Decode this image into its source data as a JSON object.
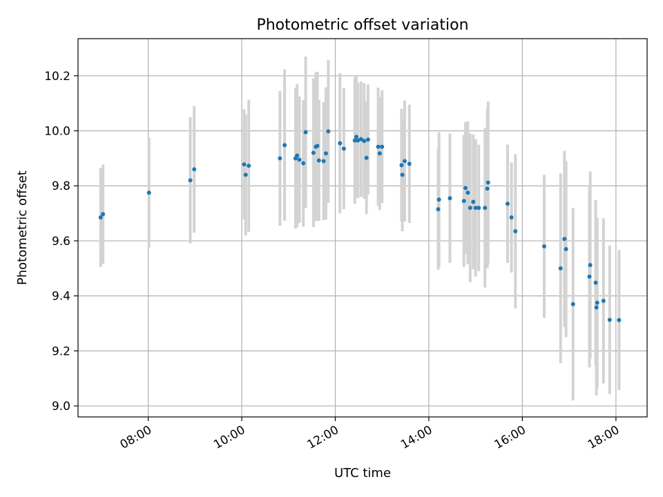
{
  "chart_data": {
    "type": "scatter",
    "title": "Photometric offset variation",
    "xlabel": "UTC time",
    "ylabel": "Photometric offset",
    "xlim": [
      "06:30",
      "18:40"
    ],
    "ylim": [
      8.96,
      10.335
    ],
    "xticks": [
      "08:00",
      "10:00",
      "12:00",
      "14:00",
      "16:00",
      "18:00"
    ],
    "yticks": [
      "9.0",
      "9.2",
      "9.4",
      "9.6",
      "9.8",
      "10.0",
      "10.2"
    ],
    "grid": true,
    "colors": {
      "point": "#1f77b4",
      "errorbar": "#d3d3d3",
      "grid": "#b0b0b0"
    },
    "series": [
      {
        "x": [
          "06:59",
          "07:02",
          "08:01",
          "08:54",
          "08:59",
          "10:03",
          "10:05",
          "10:09",
          "10:49",
          "10:55",
          "11:09",
          "11:11",
          "11:14",
          "11:19",
          "11:22",
          "11:32",
          "11:35",
          "11:37",
          "11:39",
          "11:45",
          "11:48",
          "11:51",
          "12:06",
          "12:11",
          "12:25",
          "12:27",
          "12:29",
          "12:33",
          "12:37",
          "12:40",
          "12:42",
          "12:55",
          "12:57",
          "13:00",
          "13:25",
          "13:26",
          "13:29",
          "13:35",
          "14:12",
          "14:13",
          "14:27",
          "14:45",
          "14:47",
          "14:50",
          "14:53",
          "14:57",
          "15:00",
          "15:04",
          "15:12",
          "15:15",
          "15:16",
          "15:41",
          "15:46",
          "15:51",
          "16:28",
          "16:49",
          "16:54",
          "16:56",
          "17:05",
          "17:26",
          "17:27",
          "17:34",
          "17:35",
          "17:36",
          "17:44",
          "17:52",
          "18:04"
        ],
        "y": [
          9.685,
          9.697,
          9.775,
          9.82,
          9.86,
          9.878,
          9.84,
          9.873,
          9.9,
          9.948,
          9.9,
          9.91,
          9.895,
          9.882,
          9.995,
          9.92,
          9.942,
          9.945,
          9.892,
          9.89,
          9.918,
          9.998,
          9.955,
          9.935,
          9.965,
          9.978,
          9.965,
          9.97,
          9.963,
          9.902,
          9.968,
          9.942,
          9.918,
          9.942,
          9.875,
          9.84,
          9.89,
          9.88,
          9.715,
          9.75,
          9.755,
          9.745,
          9.792,
          9.775,
          9.72,
          9.742,
          9.72,
          9.72,
          9.72,
          9.79,
          9.812,
          9.735,
          9.685,
          9.635,
          9.58,
          9.5,
          9.607,
          9.57,
          9.37,
          9.47,
          9.512,
          9.448,
          9.358,
          9.375,
          9.382,
          9.313,
          9.312
        ],
        "err": [
          0.18,
          0.18,
          0.2,
          0.23,
          0.23,
          0.2,
          0.22,
          0.24,
          0.245,
          0.275,
          0.255,
          0.26,
          0.23,
          0.23,
          0.275,
          0.27,
          0.27,
          0.27,
          0.22,
          0.215,
          0.24,
          0.26,
          0.255,
          0.22,
          0.23,
          0.22,
          0.21,
          0.21,
          0.21,
          0.205,
          0.2,
          0.215,
          0.205,
          0.205,
          0.205,
          0.205,
          0.22,
          0.215,
          0.22,
          0.245,
          0.235,
          0.24,
          0.24,
          0.26,
          0.27,
          0.245,
          0.25,
          0.23,
          0.29,
          0.29,
          0.295,
          0.215,
          0.2,
          0.28,
          0.26,
          0.345,
          0.32,
          0.32,
          0.35,
          0.33,
          0.34,
          0.3,
          0.32,
          0.31,
          0.3,
          0.27,
          0.255
        ]
      }
    ]
  }
}
